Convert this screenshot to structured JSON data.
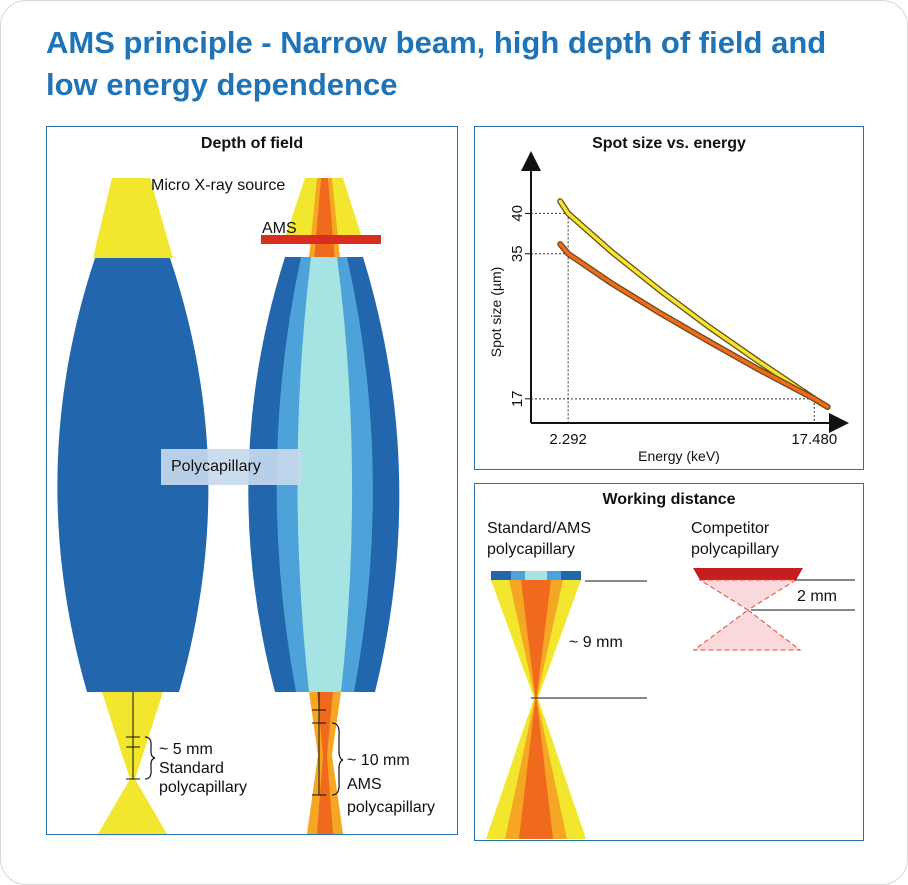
{
  "title": "AMS principle - Narrow beam, high depth of field and low energy dependence",
  "colors": {
    "accent": "#1f73b7",
    "panel_border": "#2a6fb0",
    "capillary_dark": "#2266ad",
    "capillary_mid": "#4da3d9",
    "capillary_light": "#a6e4e3",
    "beam_yellow": "#f2e62f",
    "beam_orange": "#f5a623",
    "beam_core": "#ef6a1c",
    "ams_red": "#d82d1f",
    "curve_yellow": "#f2e62f",
    "curve_orange": "#f06a1c"
  },
  "depth_of_field": {
    "heading": "Depth of field",
    "source_label": "Micro X-ray source",
    "ams_label": "AMS",
    "polycapillary_label": "Polycapillary",
    "standard_depth": "~ 5 mm",
    "standard_line1": "Standard",
    "standard_line2": "polycapillary",
    "ams_depth": "~ 10 mm",
    "ams_line1": "AMS",
    "ams_line2": "polycapillary"
  },
  "spot_size": {
    "heading": "Spot size vs. energy",
    "xlabel": "Energy (keV)",
    "ylabel": "Spot size (µm)",
    "x_ticks": [
      "2.292",
      "17.480"
    ],
    "y_ticks": [
      "40",
      "35",
      "17"
    ]
  },
  "chart_data": {
    "type": "line",
    "title": "Spot size vs. energy",
    "xlabel": "Energy (keV)",
    "ylabel": "Spot size (µm)",
    "xlim": [
      0,
      19.5
    ],
    "ylim": [
      14,
      47
    ],
    "x_ticks": [
      2.292,
      17.48
    ],
    "y_ticks": [
      40,
      35,
      17
    ],
    "series": [
      {
        "color": "#f2e62f",
        "x": [
          1.8,
          2.292,
          5,
          8,
          11,
          14,
          17.48,
          18.3
        ],
        "y": [
          41.5,
          40,
          35.2,
          30.4,
          25.9,
          21.7,
          17,
          16
        ]
      },
      {
        "color": "#f06a1c",
        "x": [
          1.8,
          2.292,
          5,
          8,
          11,
          14,
          17.48,
          18.3
        ],
        "y": [
          36.2,
          35,
          31.3,
          27.6,
          24.1,
          20.7,
          17,
          16
        ]
      }
    ]
  },
  "working_distance": {
    "heading": "Working distance",
    "standard_line1": "Standard/AMS",
    "standard_line2": "polycapillary",
    "competitor_line1": "Competitor",
    "competitor_line2": "polycapillary",
    "standard_distance": "~ 9 mm",
    "competitor_distance": "2 mm"
  }
}
